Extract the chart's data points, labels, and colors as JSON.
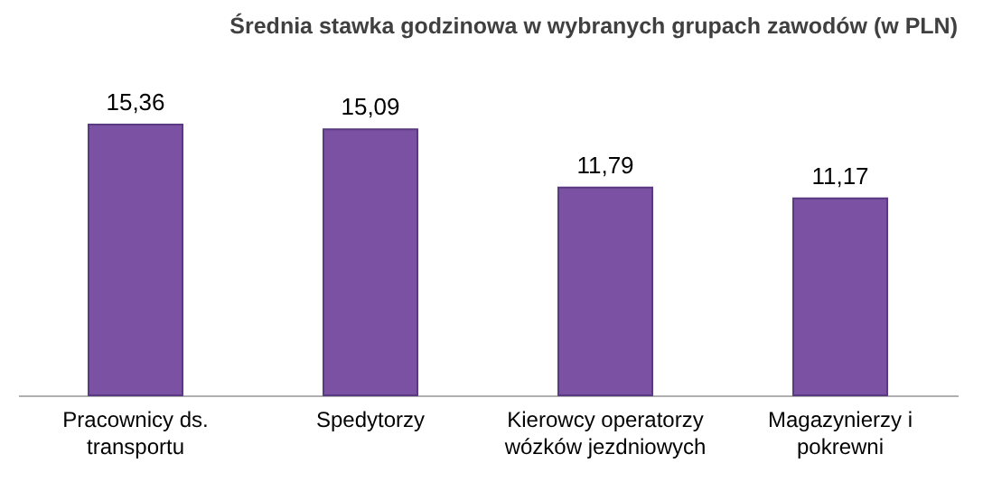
{
  "chart_data": {
    "type": "bar",
    "title": "Średnia stawka godzinowa w wybranych grupach zawodów (w PLN)",
    "categories": [
      "Pracownicy ds. transportu",
      "Spedytorzy",
      "Kierowcy operatorzy wózków jezdniowych",
      "Magazynierzy i pokrewni"
    ],
    "values": [
      15.36,
      15.09,
      11.79,
      11.17
    ],
    "value_labels": [
      "15,36",
      "15,09",
      "11,79",
      "11,17"
    ],
    "color": "#7b51a3"
  }
}
